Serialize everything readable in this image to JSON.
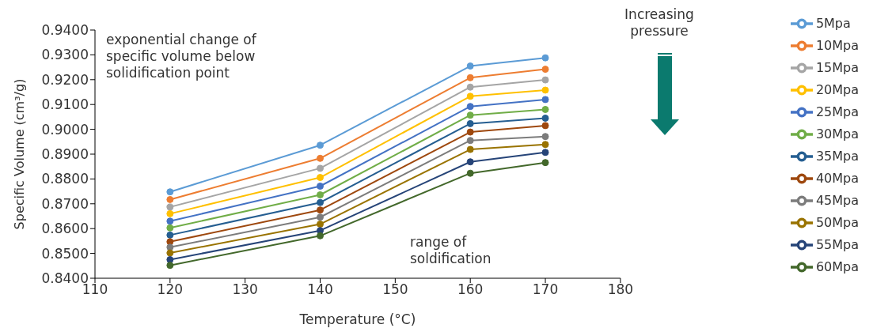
{
  "chart_data": {
    "type": "line",
    "xlabel": "Temperature (°C)",
    "ylabel": "Specific Volume (cm³/g)",
    "x": [
      120,
      140,
      160,
      170
    ],
    "xlim": [
      110,
      180
    ],
    "xticks": [
      110,
      120,
      130,
      140,
      150,
      160,
      170,
      180
    ],
    "ylim": [
      0.84,
      0.94
    ],
    "yticks": [
      {
        "value": 0.84,
        "label": "0.8400"
      },
      {
        "value": 0.85,
        "label": "0.8500"
      },
      {
        "value": 0.86,
        "label": "0.8600"
      },
      {
        "value": 0.87,
        "label": "0.8700"
      },
      {
        "value": 0.88,
        "label": "0.8800"
      },
      {
        "value": 0.89,
        "label": "0.8900"
      },
      {
        "value": 0.9,
        "label": "0.9000"
      },
      {
        "value": 0.91,
        "label": "0.9100"
      },
      {
        "value": 0.92,
        "label": "0.9200"
      },
      {
        "value": 0.93,
        "label": "0.9300"
      },
      {
        "value": 0.94,
        "label": "0.9400"
      }
    ],
    "grid": false,
    "legend": "top right",
    "marker": "circle",
    "line_style": "solid",
    "series": [
      {
        "name": "5Mpa",
        "color": "#5b9bd5",
        "values": [
          0.8748,
          0.8936,
          0.9255,
          0.9288
        ]
      },
      {
        "name": "10Mpa",
        "color": "#ed7d31",
        "values": [
          0.8717,
          0.8883,
          0.9208,
          0.9242
        ]
      },
      {
        "name": "15Mpa",
        "color": "#a5a5a5",
        "values": [
          0.8687,
          0.8843,
          0.917,
          0.9199
        ]
      },
      {
        "name": "20Mpa",
        "color": "#ffc000",
        "values": [
          0.866,
          0.8806,
          0.9133,
          0.9158
        ]
      },
      {
        "name": "25Mpa",
        "color": "#4472c4",
        "values": [
          0.863,
          0.8771,
          0.9092,
          0.912
        ]
      },
      {
        "name": "30Mpa",
        "color": "#70ad47",
        "values": [
          0.8603,
          0.8736,
          0.9057,
          0.908
        ]
      },
      {
        "name": "35Mpa",
        "color": "#255e91",
        "values": [
          0.8574,
          0.8705,
          0.9023,
          0.9045
        ]
      },
      {
        "name": "40Mpa",
        "color": "#9e480e",
        "values": [
          0.8547,
          0.8675,
          0.8989,
          0.9015
        ]
      },
      {
        "name": "45Mpa",
        "color": "#7c7c7c",
        "values": [
          0.8525,
          0.8646,
          0.8955,
          0.8971
        ]
      },
      {
        "name": "50Mpa",
        "color": "#997300",
        "values": [
          0.8502,
          0.8618,
          0.8919,
          0.8939
        ]
      },
      {
        "name": "55Mpa",
        "color": "#264478",
        "values": [
          0.8475,
          0.8592,
          0.8869,
          0.8907
        ]
      },
      {
        "name": "60Mpa",
        "color": "#43682b",
        "values": [
          0.8452,
          0.8571,
          0.8823,
          0.8866
        ]
      }
    ],
    "annotations": [
      "exponential change of specific volume below solidification point",
      "range of soldification",
      "Increasing pressure"
    ]
  }
}
